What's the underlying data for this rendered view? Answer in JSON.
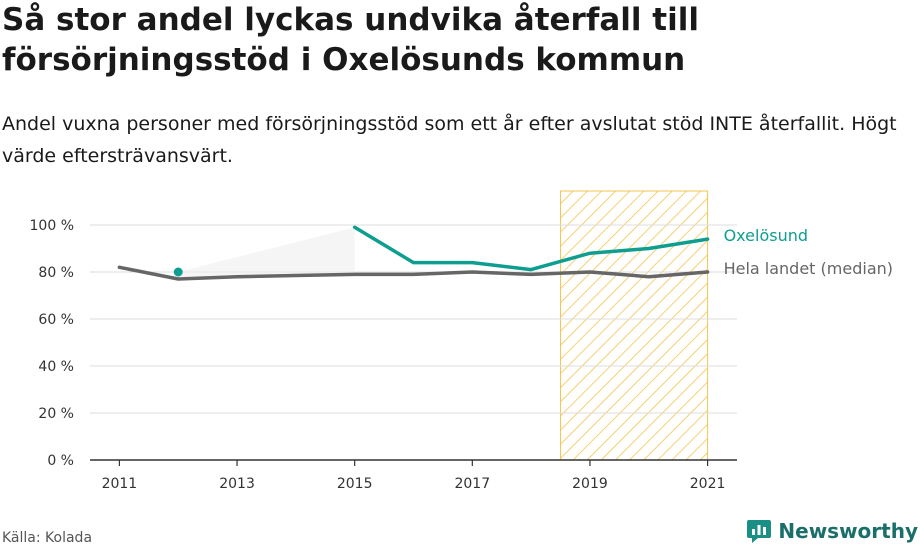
{
  "header": {
    "title": "Så stor andel lyckas undvika återfall till försörjningsstöd i Oxelösunds kommun",
    "subtitle": "Andel vuxna personer med försörjningsstöd som ett år efter avslutat stöd INTE återfallit. Högt värde eftersträvansvärt."
  },
  "footer": {
    "source": "Källa: Kolada",
    "brand": "Newsworthy"
  },
  "colors": {
    "oxelosund": "#0e9e8f",
    "median": "#666666",
    "highlight": "#f3c451"
  },
  "chart_data": {
    "type": "line",
    "x": [
      2011,
      2012,
      2013,
      2014,
      2015,
      2016,
      2017,
      2018,
      2019,
      2020,
      2021
    ],
    "xticks": [
      2011,
      2013,
      2015,
      2017,
      2019,
      2021
    ],
    "xtick_labels": [
      "2011",
      "2013",
      "2015",
      "2017",
      "2019",
      "2021"
    ],
    "yticks": [
      0,
      20,
      40,
      60,
      80,
      100
    ],
    "ytick_labels": [
      "0 %",
      "20 %",
      "40 %",
      "60 %",
      "80 %",
      "100 %"
    ],
    "ylim": [
      0,
      100
    ],
    "xlim": [
      2010.5,
      2021.5
    ],
    "grid": true,
    "highlight_range": [
      2018.5,
      2021
    ],
    "series": [
      {
        "name": "Oxelösund",
        "values": [
          null,
          80,
          null,
          null,
          99,
          84,
          84,
          81,
          88,
          90,
          94
        ]
      },
      {
        "name": "Hela landet (median)",
        "values": [
          82,
          77,
          78,
          78.5,
          79,
          79,
          80,
          79,
          80,
          78,
          80
        ]
      }
    ]
  }
}
